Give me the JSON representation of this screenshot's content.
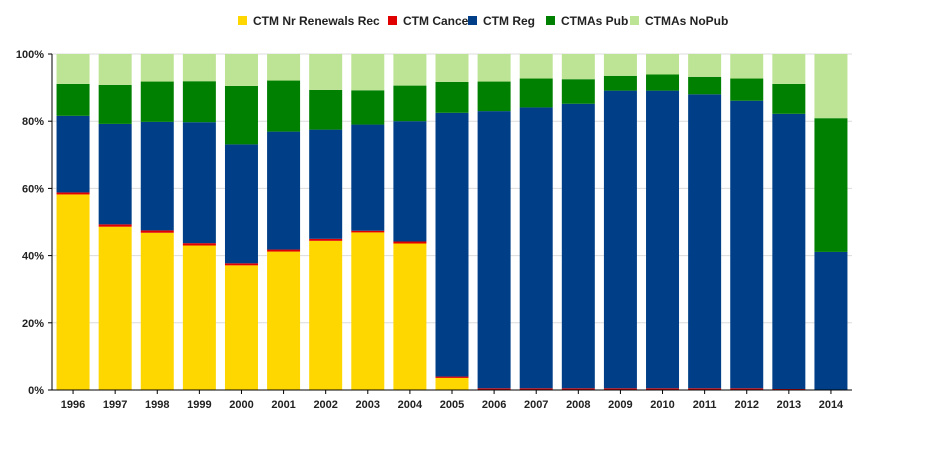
{
  "chart_data": {
    "type": "bar",
    "stacked": true,
    "percent_stacked": true,
    "categories": [
      "1996",
      "1997",
      "1998",
      "1999",
      "2000",
      "2001",
      "2002",
      "2003",
      "2004",
      "2005",
      "2006",
      "2007",
      "2008",
      "2009",
      "2010",
      "2011",
      "2012",
      "2013",
      "2014"
    ],
    "series": [
      {
        "name": "CTM Nr Renewals Rec",
        "color": "#FFD700",
        "values": [
          58.2,
          48.6,
          46.8,
          43.0,
          37.1,
          41.2,
          44.4,
          46.9,
          43.6,
          3.6,
          0,
          0,
          0,
          0,
          0,
          0,
          0,
          0,
          0
        ]
      },
      {
        "name": "CTM Cancel",
        "color": "#E00000",
        "values": [
          0.6,
          0.7,
          0.7,
          0.7,
          0.6,
          0.6,
          0.6,
          0.5,
          0.6,
          0.4,
          0.5,
          0.5,
          0.5,
          0.5,
          0.5,
          0.5,
          0.5,
          0.3,
          0.1
        ]
      },
      {
        "name": "CTM Reg",
        "color": "#003F87",
        "values": [
          22.8,
          29.9,
          32.3,
          36.0,
          35.4,
          35.1,
          32.5,
          31.6,
          35.8,
          78.5,
          82.5,
          83.6,
          84.7,
          88.6,
          88.6,
          87.5,
          85.6,
          81.9,
          41.0
        ]
      },
      {
        "name": "CTMAs Pub",
        "color": "#008000",
        "values": [
          9.5,
          11.6,
          12.0,
          12.2,
          17.4,
          15.2,
          11.8,
          10.2,
          10.6,
          9.2,
          8.8,
          8.6,
          7.3,
          4.4,
          4.8,
          5.2,
          6.6,
          8.9,
          39.8
        ]
      },
      {
        "name": "CTMAs NoPub",
        "color": "#BDE395",
        "values": [
          8.9,
          9.2,
          8.2,
          8.1,
          9.5,
          7.9,
          10.7,
          10.8,
          9.4,
          8.3,
          8.2,
          7.3,
          7.5,
          6.5,
          6.1,
          6.8,
          7.3,
          8.9,
          19.1
        ]
      }
    ],
    "y_ticks": [
      "0%",
      "20%",
      "40%",
      "60%",
      "80%",
      "100%"
    ],
    "ylim": [
      0,
      100
    ],
    "grid": true,
    "legend_position": "top-center"
  }
}
